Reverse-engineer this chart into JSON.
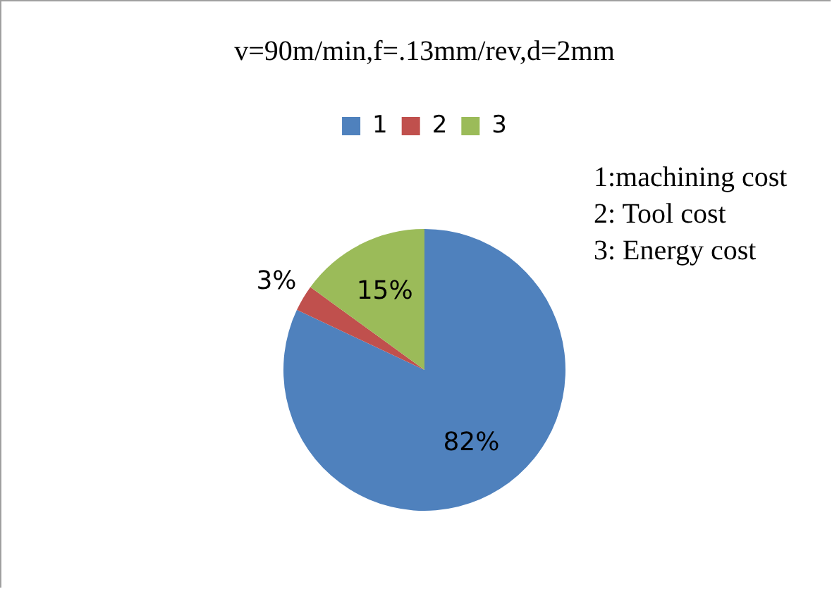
{
  "chart_data": {
    "type": "pie",
    "title": "v=90m/min,f=.13mm/rev,d=2mm",
    "categories": [
      "1",
      "2",
      "3"
    ],
    "values": [
      82,
      3,
      15
    ],
    "colors": [
      "#4f81bd",
      "#c0504d",
      "#9bbb59"
    ],
    "value_labels": [
      "82%",
      "3%",
      "15%"
    ],
    "legend": "top",
    "annotations": [
      "1:machining cost",
      "2: Tool cost",
      "3: Energy cost"
    ]
  }
}
